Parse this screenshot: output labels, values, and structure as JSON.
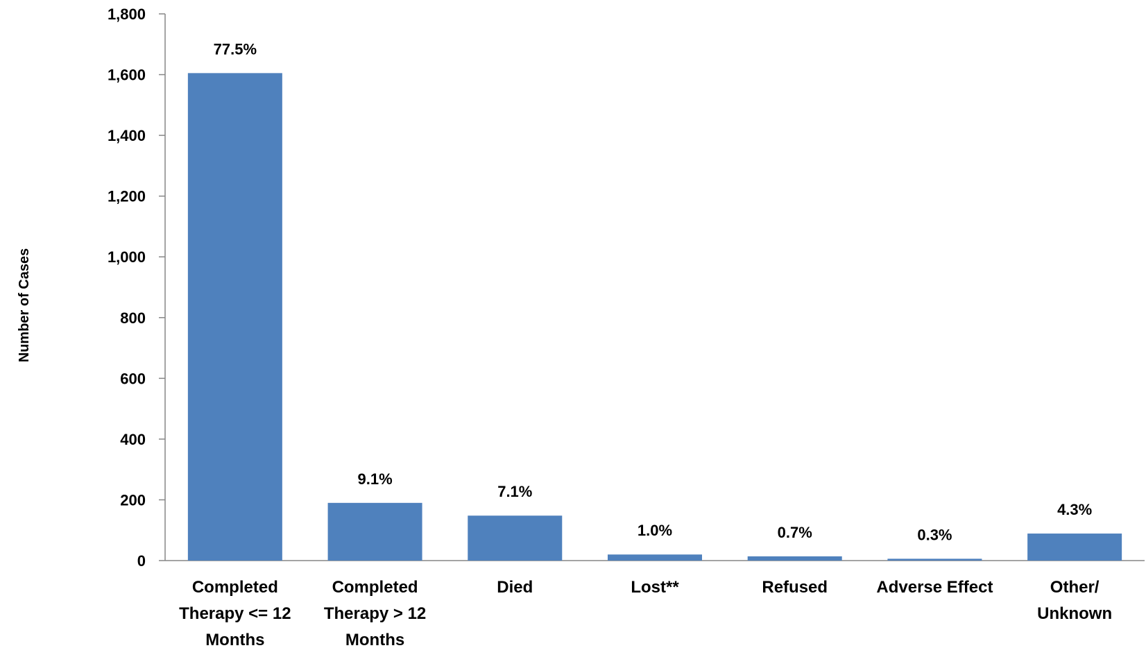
{
  "chart_data": {
    "type": "bar",
    "categories": [
      [
        "Completed",
        "Therapy <= 12",
        "Months"
      ],
      [
        "Completed",
        "Therapy > 12",
        "Months"
      ],
      [
        "Died"
      ],
      [
        "Lost**"
      ],
      [
        "Refused"
      ],
      [
        "Adverse Effect"
      ],
      [
        "Other/",
        "Unknown"
      ]
    ],
    "values": [
      1605,
      190,
      148,
      20,
      14,
      6,
      89
    ],
    "data_labels": [
      "77.5%",
      "9.1%",
      "7.1%",
      "1.0%",
      "0.7%",
      "0.3%",
      "4.3%"
    ],
    "ylabel": "Number of Cases",
    "ylim": [
      0,
      1800
    ],
    "yticks": [
      0,
      200,
      400,
      600,
      800,
      1000,
      1200,
      1400,
      1600,
      1800
    ],
    "ytick_labels": [
      "0",
      "200",
      "400",
      "600",
      "800",
      "1,000",
      "1,200",
      "1,400",
      "1,600",
      "1,800"
    ],
    "bar_color": "#4f81bd",
    "grid": false,
    "legend": "none"
  }
}
